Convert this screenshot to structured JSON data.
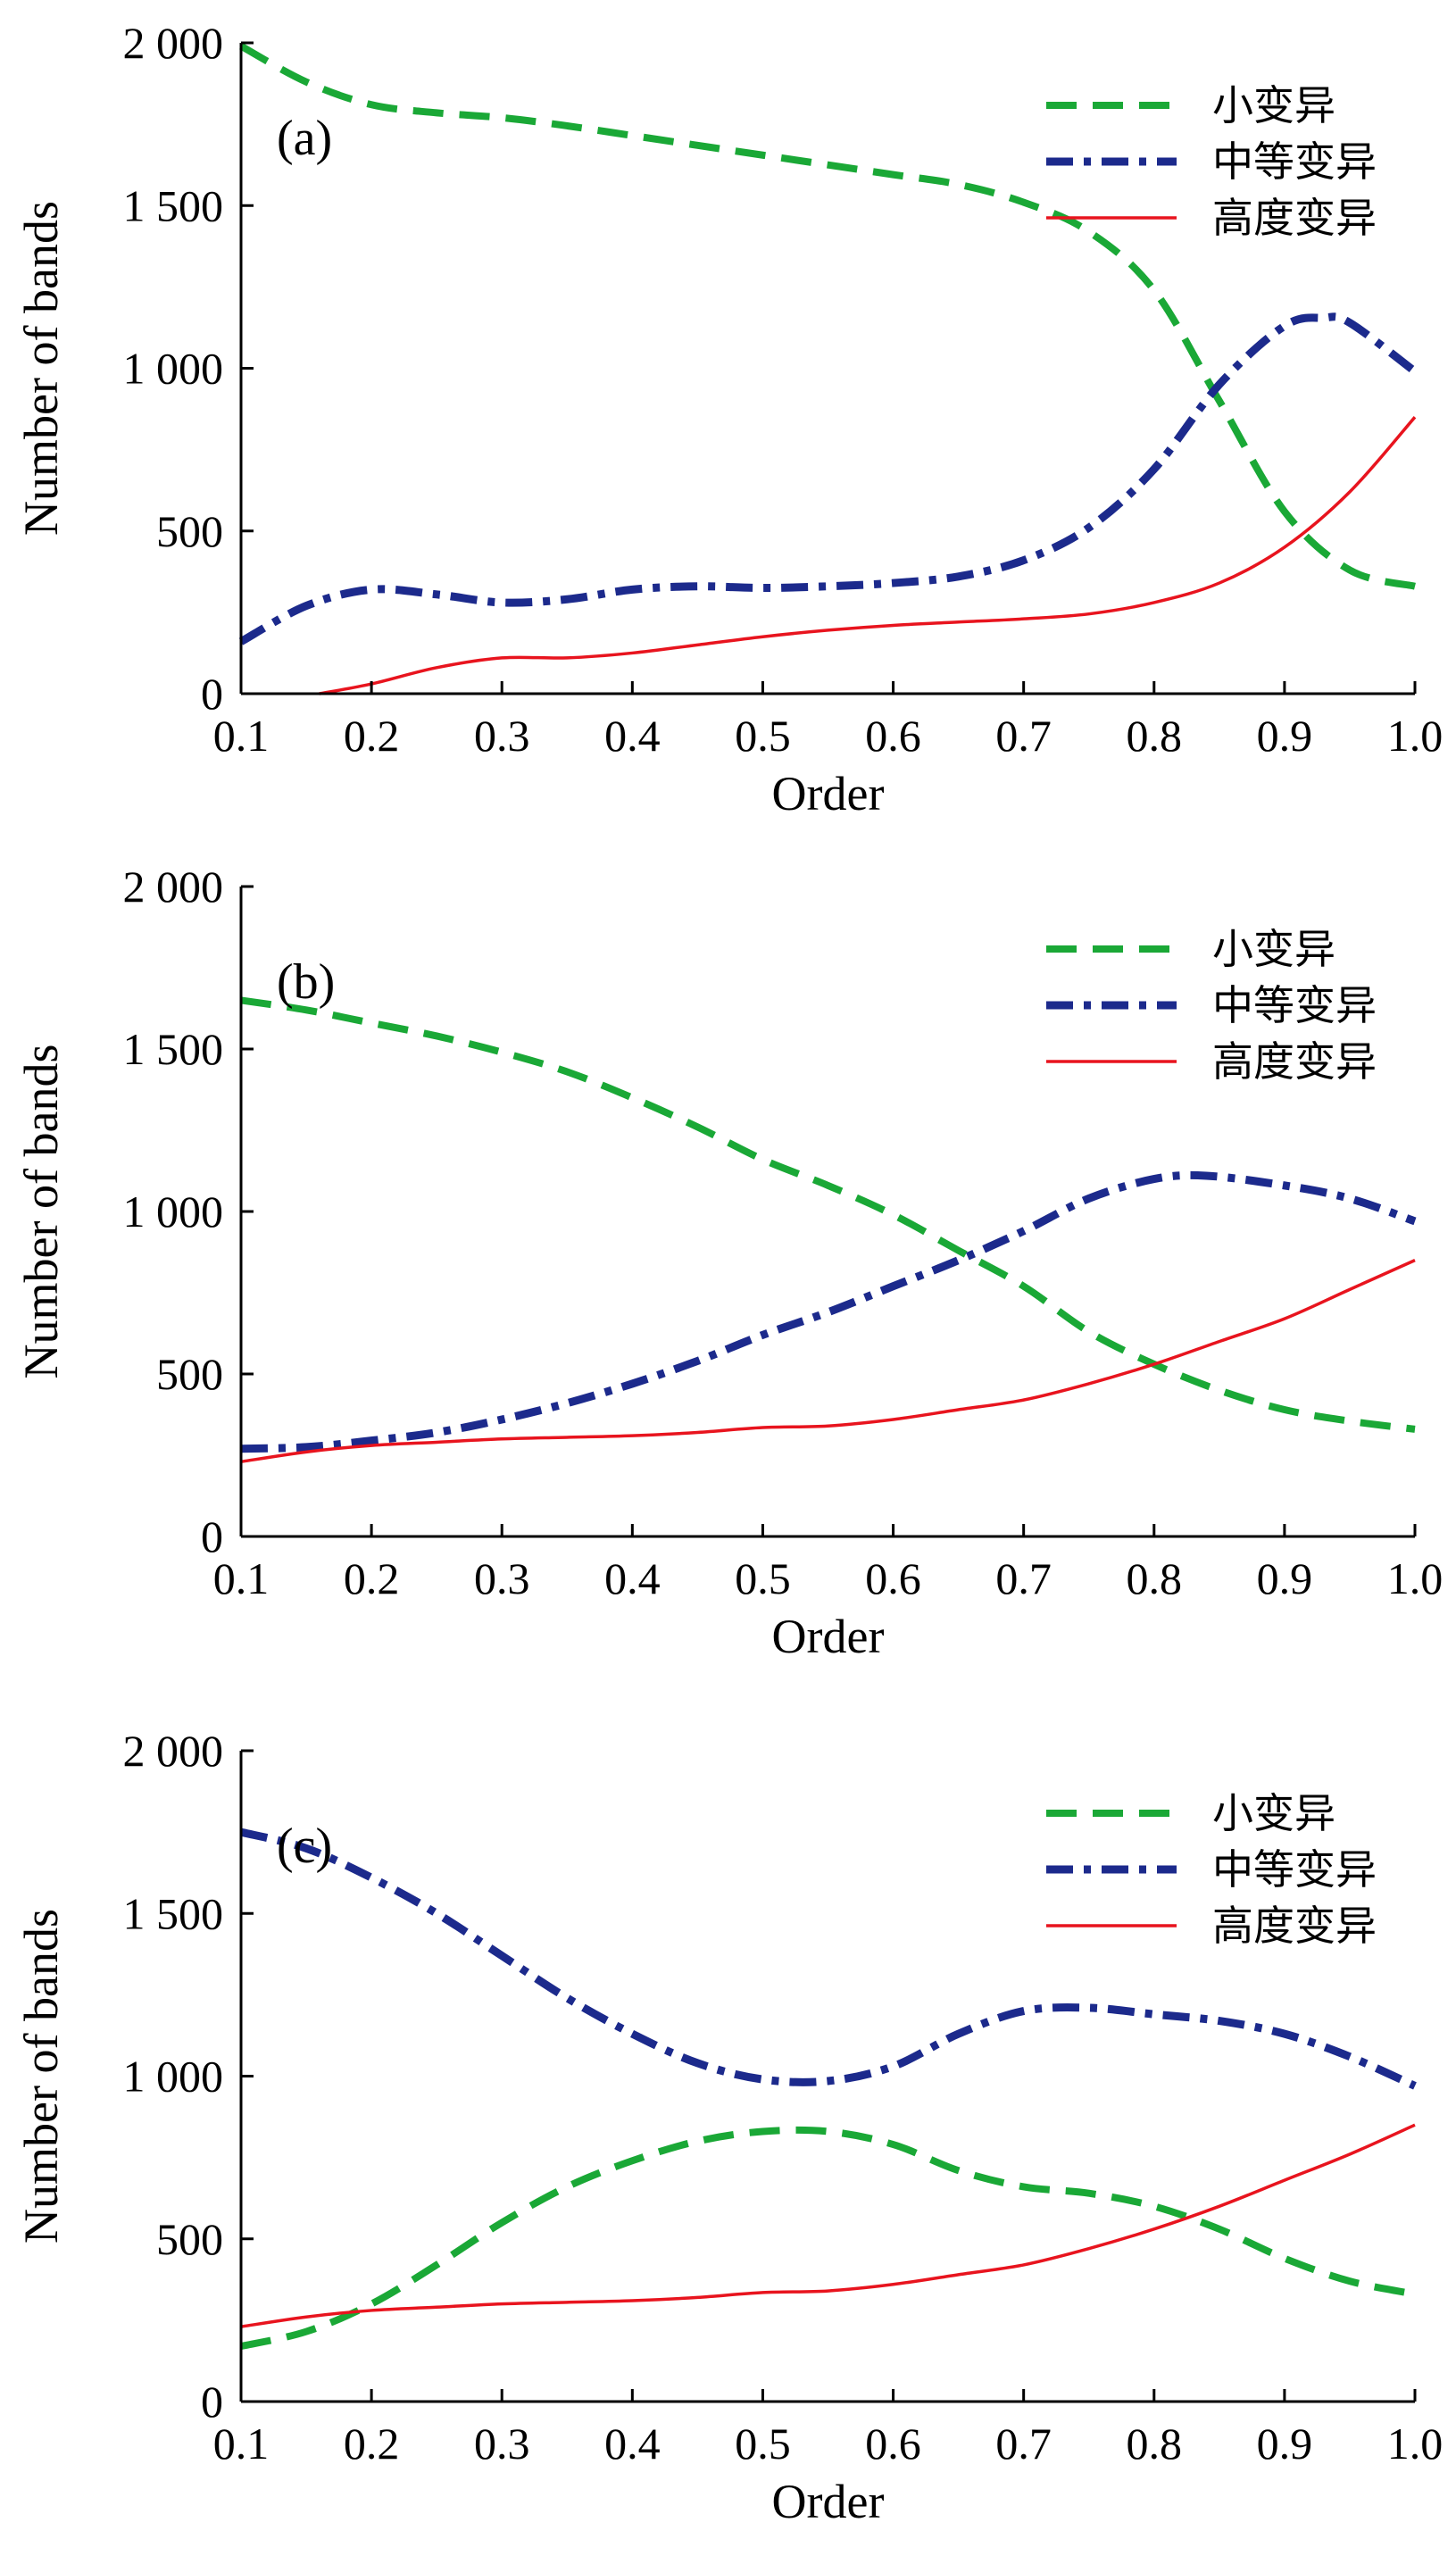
{
  "colors": {
    "small": "#1aa836",
    "medium": "#1c2a8c",
    "high": "#e8141e"
  },
  "chart_data": [
    {
      "type": "line",
      "panel_label": "(a)",
      "xlabel": "Order",
      "ylabel": "Number of bands",
      "xlim": [
        0.1,
        1.0
      ],
      "ylim": [
        0,
        2000
      ],
      "x_ticks": [
        "0.1",
        "0.2",
        "0.3",
        "0.4",
        "0.5",
        "0.6",
        "0.7",
        "0.8",
        "0.9",
        "1.0"
      ],
      "y_ticks": [
        "0",
        "500",
        "1 000",
        "1 500",
        "2 000"
      ],
      "legend_position": "top-right",
      "series": [
        {
          "name": "小变异",
          "style": "dashed",
          "x": [
            0.1,
            0.15,
            0.2,
            0.25,
            0.3,
            0.35,
            0.4,
            0.45,
            0.5,
            0.55,
            0.6,
            0.65,
            0.7,
            0.75,
            0.8,
            0.85,
            0.9,
            0.95,
            1.0
          ],
          "y": [
            1990,
            1880,
            1810,
            1785,
            1770,
            1745,
            1715,
            1685,
            1655,
            1625,
            1595,
            1565,
            1510,
            1420,
            1240,
            900,
            560,
            380,
            330
          ]
        },
        {
          "name": "中等变异",
          "style": "dashdot",
          "x": [
            0.1,
            0.15,
            0.2,
            0.25,
            0.3,
            0.35,
            0.4,
            0.45,
            0.5,
            0.55,
            0.6,
            0.65,
            0.7,
            0.75,
            0.8,
            0.85,
            0.9,
            0.93,
            0.95,
            1.0
          ],
          "y": [
            160,
            270,
            320,
            305,
            280,
            290,
            320,
            330,
            325,
            330,
            340,
            360,
            410,
            510,
            690,
            950,
            1130,
            1155,
            1140,
            990
          ]
        },
        {
          "name": "高度变异",
          "style": "solid",
          "x": [
            0.16,
            0.2,
            0.25,
            0.3,
            0.35,
            0.4,
            0.45,
            0.5,
            0.55,
            0.6,
            0.65,
            0.7,
            0.75,
            0.8,
            0.85,
            0.9,
            0.95,
            1.0
          ],
          "y": [
            0,
            30,
            80,
            110,
            110,
            125,
            150,
            175,
            195,
            210,
            220,
            230,
            245,
            280,
            340,
            450,
            620,
            850
          ]
        }
      ]
    },
    {
      "type": "line",
      "panel_label": "(b)",
      "xlabel": "Order",
      "ylabel": "Number of bands",
      "xlim": [
        0.1,
        1.0
      ],
      "ylim": [
        0,
        2000
      ],
      "x_ticks": [
        "0.1",
        "0.2",
        "0.3",
        "0.4",
        "0.5",
        "0.6",
        "0.7",
        "0.8",
        "0.9",
        "1.0"
      ],
      "y_ticks": [
        "0",
        "500",
        "1 000",
        "1 500",
        "2 000"
      ],
      "legend_position": "top-right",
      "series": [
        {
          "name": "小变异",
          "style": "dashed",
          "x": [
            0.1,
            0.15,
            0.2,
            0.25,
            0.3,
            0.35,
            0.4,
            0.45,
            0.5,
            0.55,
            0.6,
            0.65,
            0.7,
            0.75,
            0.8,
            0.85,
            0.9,
            0.95,
            1.0
          ],
          "y": [
            1650,
            1620,
            1580,
            1540,
            1490,
            1430,
            1350,
            1260,
            1160,
            1080,
            990,
            880,
            770,
            630,
            530,
            450,
            390,
            355,
            330
          ]
        },
        {
          "name": "中等变异",
          "style": "dashdot",
          "x": [
            0.1,
            0.15,
            0.2,
            0.25,
            0.3,
            0.35,
            0.4,
            0.45,
            0.5,
            0.55,
            0.6,
            0.65,
            0.7,
            0.75,
            0.8,
            0.84,
            0.9,
            0.95,
            1.0
          ],
          "y": [
            270,
            275,
            295,
            320,
            360,
            410,
            470,
            540,
            620,
            690,
            770,
            850,
            940,
            1040,
            1100,
            1110,
            1080,
            1040,
            970
          ]
        },
        {
          "name": "高度变异",
          "style": "solid",
          "x": [
            0.1,
            0.15,
            0.2,
            0.25,
            0.3,
            0.35,
            0.4,
            0.45,
            0.5,
            0.55,
            0.6,
            0.65,
            0.7,
            0.75,
            0.8,
            0.85,
            0.9,
            0.95,
            1.0
          ],
          "y": [
            230,
            260,
            280,
            290,
            300,
            305,
            310,
            320,
            335,
            340,
            360,
            390,
            420,
            470,
            530,
            600,
            670,
            760,
            850
          ]
        }
      ]
    },
    {
      "type": "line",
      "panel_label": "(c)",
      "xlabel": "Order",
      "ylabel": "Number of bands",
      "xlim": [
        0.1,
        1.0
      ],
      "ylim": [
        0,
        2000
      ],
      "x_ticks": [
        "0.1",
        "0.2",
        "0.3",
        "0.4",
        "0.5",
        "0.6",
        "0.7",
        "0.8",
        "0.9",
        "1.0"
      ],
      "y_ticks": [
        "0",
        "500",
        "1 000",
        "1 500",
        "2 000"
      ],
      "legend_position": "top-right",
      "series": [
        {
          "name": "小变异",
          "style": "dashed",
          "x": [
            0.1,
            0.15,
            0.2,
            0.25,
            0.3,
            0.35,
            0.4,
            0.45,
            0.5,
            0.55,
            0.6,
            0.65,
            0.7,
            0.75,
            0.8,
            0.85,
            0.9,
            0.95,
            1.0
          ],
          "y": [
            170,
            215,
            300,
            420,
            550,
            660,
            740,
            800,
            830,
            830,
            790,
            710,
            660,
            640,
            600,
            530,
            440,
            370,
            330
          ]
        },
        {
          "name": "中等变异",
          "style": "dashdot",
          "x": [
            0.1,
            0.15,
            0.2,
            0.25,
            0.3,
            0.35,
            0.4,
            0.45,
            0.5,
            0.55,
            0.6,
            0.65,
            0.7,
            0.75,
            0.8,
            0.85,
            0.9,
            0.95,
            1.0
          ],
          "y": [
            1750,
            1700,
            1610,
            1500,
            1370,
            1240,
            1130,
            1040,
            990,
            985,
            1030,
            1130,
            1200,
            1210,
            1190,
            1170,
            1130,
            1060,
            970
          ]
        },
        {
          "name": "高度变异",
          "style": "solid",
          "x": [
            0.1,
            0.15,
            0.2,
            0.25,
            0.3,
            0.35,
            0.4,
            0.45,
            0.5,
            0.55,
            0.6,
            0.65,
            0.7,
            0.75,
            0.8,
            0.85,
            0.9,
            0.95,
            1.0
          ],
          "y": [
            230,
            260,
            280,
            290,
            300,
            305,
            310,
            320,
            335,
            340,
            360,
            390,
            420,
            470,
            530,
            600,
            680,
            760,
            850
          ]
        }
      ]
    }
  ]
}
